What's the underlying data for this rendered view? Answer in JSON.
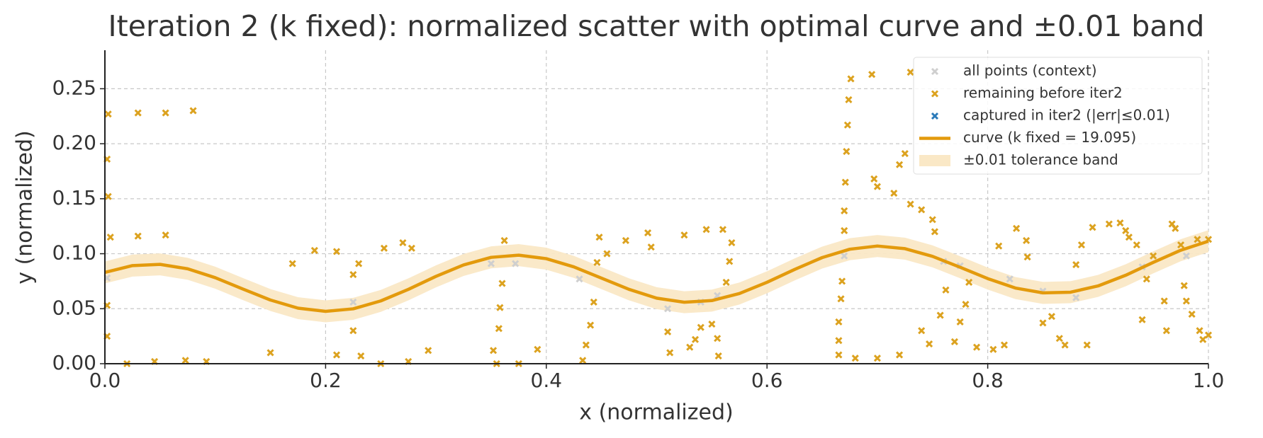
{
  "chart_data": {
    "type": "scatter",
    "title": "Iteration 2 (k fixed): normalized scatter with optimal curve and ±0.01 band",
    "xlabel": "x (normalized)",
    "ylabel": "y (normalized)",
    "xlim": [
      0,
      1
    ],
    "ylim": [
      0,
      0.285
    ],
    "xticks": [
      {
        "value": 0,
        "label": "0.0"
      },
      {
        "value": 0.2,
        "label": "0.2"
      },
      {
        "value": 0.4,
        "label": "0.4"
      },
      {
        "value": 0.6,
        "label": "0.6"
      },
      {
        "value": 0.8,
        "label": "0.8"
      },
      {
        "value": 1,
        "label": "1.0"
      }
    ],
    "yticks": [
      {
        "value": 0,
        "label": "0.00"
      },
      {
        "value": 0.05,
        "label": "0.05"
      },
      {
        "value": 0.1,
        "label": "0.10"
      },
      {
        "value": 0.15,
        "label": "0.15"
      },
      {
        "value": 0.2,
        "label": "0.20"
      },
      {
        "value": 0.25,
        "label": "0.25"
      }
    ],
    "grid": true,
    "legend": "upper right",
    "band": {
      "name": "±0.01 tolerance band",
      "color": "#fae8c6",
      "tolerance": 0.01
    },
    "series": [
      {
        "name": "all points (context)",
        "type": "scatter",
        "color": "#cfcfcf",
        "x": [
          0.002,
          0.225,
          0.35,
          0.372,
          0.43,
          0.51,
          0.54,
          0.555,
          0.67,
          0.76,
          0.775,
          0.82,
          0.85,
          0.88,
          0.94,
          0.98
        ],
        "y": [
          0.078,
          0.056,
          0.091,
          0.091,
          0.077,
          0.05,
          0.056,
          0.062,
          0.098,
          0.093,
          0.089,
          0.077,
          0.066,
          0.06,
          0.088,
          0.098
        ]
      },
      {
        "name": "remaining before iter2",
        "type": "scatter",
        "color": "#dca21f",
        "x": [
          0.003,
          0.002,
          0.003,
          0.005,
          0.002,
          0.002,
          0.03,
          0.055,
          0.08,
          0.03,
          0.055,
          0.02,
          0.045,
          0.073,
          0.092,
          0.15,
          0.17,
          0.19,
          0.21,
          0.21,
          0.225,
          0.23,
          0.225,
          0.232,
          0.253,
          0.25,
          0.27,
          0.278,
          0.275,
          0.293,
          0.352,
          0.355,
          0.357,
          0.358,
          0.36,
          0.362,
          0.375,
          0.392,
          0.433,
          0.436,
          0.44,
          0.443,
          0.446,
          0.448,
          0.455,
          0.472,
          0.492,
          0.495,
          0.51,
          0.512,
          0.525,
          0.53,
          0.535,
          0.54,
          0.545,
          0.55,
          0.555,
          0.556,
          0.56,
          0.563,
          0.566,
          0.568,
          0.665,
          0.665,
          0.665,
          0.667,
          0.668,
          0.67,
          0.67,
          0.671,
          0.672,
          0.673,
          0.674,
          0.676,
          0.68,
          0.695,
          0.697,
          0.7,
          0.7,
          0.715,
          0.72,
          0.72,
          0.725,
          0.73,
          0.73,
          0.74,
          0.75,
          0.752,
          0.747,
          0.74,
          0.757,
          0.762,
          0.77,
          0.775,
          0.78,
          0.783,
          0.79,
          0.805,
          0.81,
          0.815,
          0.826,
          0.835,
          0.836,
          0.85,
          0.858,
          0.865,
          0.87,
          0.88,
          0.885,
          0.895,
          0.89,
          0.91,
          0.92,
          0.925,
          0.928,
          0.935,
          0.94,
          0.944,
          0.95,
          0.96,
          0.962,
          0.967,
          0.97,
          0.975,
          0.978,
          0.98,
          0.985,
          0.99,
          0.992,
          0.995,
          1.0,
          1.0
        ],
        "y": [
          0.227,
          0.186,
          0.152,
          0.115,
          0.053,
          0.025,
          0.228,
          0.228,
          0.23,
          0.116,
          0.117,
          0.0,
          0.002,
          0.003,
          0.002,
          0.01,
          0.091,
          0.103,
          0.102,
          0.008,
          0.081,
          0.091,
          0.03,
          0.007,
          0.105,
          0.0,
          0.11,
          0.105,
          0.002,
          0.012,
          0.012,
          0.0,
          0.032,
          0.051,
          0.073,
          0.112,
          0.0,
          0.013,
          0.003,
          0.017,
          0.035,
          0.056,
          0.092,
          0.115,
          0.1,
          0.112,
          0.119,
          0.106,
          0.029,
          0.01,
          0.117,
          0.015,
          0.022,
          0.033,
          0.122,
          0.036,
          0.023,
          0.007,
          0.122,
          0.074,
          0.093,
          0.11,
          0.008,
          0.021,
          0.038,
          0.059,
          0.075,
          0.121,
          0.139,
          0.165,
          0.193,
          0.217,
          0.24,
          0.259,
          0.005,
          0.263,
          0.168,
          0.161,
          0.005,
          0.155,
          0.008,
          0.181,
          0.191,
          0.265,
          0.145,
          0.14,
          0.131,
          0.12,
          0.018,
          0.03,
          0.044,
          0.067,
          0.02,
          0.038,
          0.054,
          0.074,
          0.015,
          0.013,
          0.107,
          0.017,
          0.123,
          0.112,
          0.097,
          0.037,
          0.043,
          0.023,
          0.017,
          0.09,
          0.108,
          0.124,
          0.017,
          0.127,
          0.128,
          0.121,
          0.115,
          0.108,
          0.04,
          0.077,
          0.098,
          0.057,
          0.03,
          0.127,
          0.123,
          0.108,
          0.071,
          0.057,
          0.045,
          0.113,
          0.03,
          0.022,
          0.113,
          0.026
        ]
      },
      {
        "name": "captured in iter2 (|err|≤0.01)",
        "type": "scatter",
        "color": "#2a7ab9",
        "x": [],
        "y": []
      },
      {
        "name": "curve (k fixed = 19.095)",
        "type": "line",
        "color": "#e39a0c",
        "x": [
          0,
          0.025,
          0.05,
          0.075,
          0.1,
          0.125,
          0.15,
          0.175,
          0.2,
          0.225,
          0.25,
          0.275,
          0.3,
          0.325,
          0.35,
          0.375,
          0.4,
          0.425,
          0.45,
          0.475,
          0.5,
          0.525,
          0.55,
          0.575,
          0.6,
          0.625,
          0.65,
          0.675,
          0.7,
          0.725,
          0.75,
          0.775,
          0.8,
          0.825,
          0.85,
          0.875,
          0.9,
          0.925,
          0.95,
          0.975,
          1.0
        ],
        "y": [
          0.083,
          0.0892,
          0.0903,
          0.0863,
          0.0782,
          0.0679,
          0.0579,
          0.0505,
          0.0476,
          0.0499,
          0.0571,
          0.0676,
          0.0794,
          0.0898,
          0.0967,
          0.0987,
          0.0955,
          0.088,
          0.0778,
          0.0676,
          0.0596,
          0.0559,
          0.0574,
          0.0638,
          0.074,
          0.0857,
          0.0965,
          0.1041,
          0.107,
          0.1046,
          0.0976,
          0.0877,
          0.0774,
          0.0688,
          0.0644,
          0.065,
          0.0707,
          0.0804,
          0.0921,
          0.1032,
          0.1114
        ]
      }
    ]
  }
}
